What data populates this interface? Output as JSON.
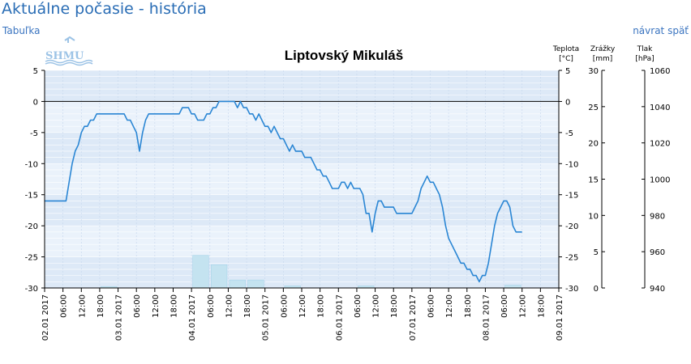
{
  "page": {
    "title": "Aktuálne počasie - história",
    "table_link": "Tabuľka",
    "back_link": "návrat späť",
    "logo_text": "SHMU"
  },
  "chart_data": {
    "type": "line",
    "title": "Liptovský Mikuláš",
    "axes": {
      "temperature": {
        "label_line1": "Teplota",
        "label_line2": "[°C]",
        "range": [
          -30,
          5
        ],
        "ticks": [
          5,
          0,
          -5,
          -10,
          -15,
          -20,
          -25,
          -30
        ]
      },
      "precipitation": {
        "label_line1": "Zrážky",
        "label_line2": "[mm]",
        "range": [
          0,
          30
        ],
        "ticks": [
          30,
          25,
          20,
          15,
          10,
          5,
          0
        ]
      },
      "pressure": {
        "label_line1": "Tlak",
        "label_line2": "[hPa]",
        "range": [
          940,
          1060
        ],
        "ticks": [
          1060,
          1040,
          1020,
          1000,
          980,
          960,
          940
        ]
      }
    },
    "x_range_hours": [
      0,
      168
    ],
    "x_ticks": [
      {
        "h": 0,
        "label": "02.01 2017"
      },
      {
        "h": 6,
        "label": "06:00"
      },
      {
        "h": 12,
        "label": "12:00"
      },
      {
        "h": 18,
        "label": "18:00"
      },
      {
        "h": 24,
        "label": "03.01 2017"
      },
      {
        "h": 30,
        "label": "06:00"
      },
      {
        "h": 36,
        "label": "12:00"
      },
      {
        "h": 42,
        "label": "18:00"
      },
      {
        "h": 48,
        "label": "04.01 2017"
      },
      {
        "h": 54,
        "label": "06:00"
      },
      {
        "h": 60,
        "label": "12:00"
      },
      {
        "h": 66,
        "label": "18:00"
      },
      {
        "h": 72,
        "label": "05.01 2017"
      },
      {
        "h": 78,
        "label": "06:00"
      },
      {
        "h": 84,
        "label": "12:00"
      },
      {
        "h": 90,
        "label": "18:00"
      },
      {
        "h": 96,
        "label": "06.01 2017"
      },
      {
        "h": 102,
        "label": "06:00"
      },
      {
        "h": 108,
        "label": "12:00"
      },
      {
        "h": 114,
        "label": "18:00"
      },
      {
        "h": 120,
        "label": "07.01 2017"
      },
      {
        "h": 126,
        "label": "06:00"
      },
      {
        "h": 132,
        "label": "12:00"
      },
      {
        "h": 138,
        "label": "18:00"
      },
      {
        "h": 144,
        "label": "08.01 2017"
      },
      {
        "h": 150,
        "label": "06:00"
      },
      {
        "h": 156,
        "label": "12:00"
      },
      {
        "h": 162,
        "label": "18:00"
      },
      {
        "h": 168,
        "label": "09.01 2017"
      }
    ],
    "temperature_series": {
      "color": "#2a86d4",
      "points": [
        [
          0,
          -16
        ],
        [
          2,
          -16
        ],
        [
          4,
          -16
        ],
        [
          5,
          -16
        ],
        [
          6,
          -16
        ],
        [
          7,
          -16
        ],
        [
          8,
          -13
        ],
        [
          9,
          -10
        ],
        [
          10,
          -8
        ],
        [
          11,
          -7
        ],
        [
          12,
          -5
        ],
        [
          13,
          -4
        ],
        [
          14,
          -4
        ],
        [
          15,
          -3
        ],
        [
          16,
          -3
        ],
        [
          17,
          -2
        ],
        [
          18,
          -2
        ],
        [
          19,
          -2
        ],
        [
          20,
          -2
        ],
        [
          21,
          -2
        ],
        [
          22,
          -2
        ],
        [
          23,
          -2
        ],
        [
          24,
          -2
        ],
        [
          25,
          -2
        ],
        [
          26,
          -2
        ],
        [
          27,
          -3
        ],
        [
          28,
          -3
        ],
        [
          29,
          -4
        ],
        [
          30,
          -5
        ],
        [
          31,
          -8
        ],
        [
          32,
          -5
        ],
        [
          33,
          -3
        ],
        [
          34,
          -2
        ],
        [
          35,
          -2
        ],
        [
          36,
          -2
        ],
        [
          37,
          -2
        ],
        [
          38,
          -2
        ],
        [
          39,
          -2
        ],
        [
          40,
          -2
        ],
        [
          41,
          -2
        ],
        [
          42,
          -2
        ],
        [
          43,
          -2
        ],
        [
          44,
          -2
        ],
        [
          45,
          -1
        ],
        [
          46,
          -1
        ],
        [
          47,
          -1
        ],
        [
          48,
          -2
        ],
        [
          49,
          -2
        ],
        [
          50,
          -3
        ],
        [
          51,
          -3
        ],
        [
          52,
          -3
        ],
        [
          53,
          -2
        ],
        [
          54,
          -2
        ],
        [
          55,
          -1
        ],
        [
          56,
          -1
        ],
        [
          57,
          0
        ],
        [
          58,
          0
        ],
        [
          59,
          0
        ],
        [
          60,
          0
        ],
        [
          61,
          0
        ],
        [
          62,
          0
        ],
        [
          63,
          -1
        ],
        [
          64,
          0
        ],
        [
          65,
          -1
        ],
        [
          66,
          -1
        ],
        [
          67,
          -2
        ],
        [
          68,
          -2
        ],
        [
          69,
          -3
        ],
        [
          70,
          -2
        ],
        [
          71,
          -3
        ],
        [
          72,
          -4
        ],
        [
          73,
          -4
        ],
        [
          74,
          -5
        ],
        [
          75,
          -4
        ],
        [
          76,
          -5
        ],
        [
          77,
          -6
        ],
        [
          78,
          -6
        ],
        [
          79,
          -7
        ],
        [
          80,
          -8
        ],
        [
          81,
          -7
        ],
        [
          82,
          -8
        ],
        [
          83,
          -8
        ],
        [
          84,
          -8
        ],
        [
          85,
          -9
        ],
        [
          86,
          -9
        ],
        [
          87,
          -9
        ],
        [
          88,
          -10
        ],
        [
          89,
          -11
        ],
        [
          90,
          -11
        ],
        [
          91,
          -12
        ],
        [
          92,
          -12
        ],
        [
          93,
          -13
        ],
        [
          94,
          -14
        ],
        [
          95,
          -14
        ],
        [
          96,
          -14
        ],
        [
          97,
          -13
        ],
        [
          98,
          -13
        ],
        [
          99,
          -14
        ],
        [
          100,
          -13
        ],
        [
          101,
          -14
        ],
        [
          102,
          -14
        ],
        [
          103,
          -14
        ],
        [
          104,
          -15
        ],
        [
          105,
          -18
        ],
        [
          106,
          -18
        ],
        [
          107,
          -21
        ],
        [
          108,
          -18
        ],
        [
          109,
          -16
        ],
        [
          110,
          -16
        ],
        [
          111,
          -17
        ],
        [
          112,
          -17
        ],
        [
          113,
          -17
        ],
        [
          114,
          -17
        ],
        [
          115,
          -18
        ],
        [
          116,
          -18
        ],
        [
          117,
          -18
        ],
        [
          118,
          -18
        ],
        [
          119,
          -18
        ],
        [
          120,
          -18
        ],
        [
          121,
          -17
        ],
        [
          122,
          -16
        ],
        [
          123,
          -14
        ],
        [
          124,
          -13
        ],
        [
          125,
          -12
        ],
        [
          126,
          -13
        ],
        [
          127,
          -13
        ],
        [
          128,
          -14
        ],
        [
          129,
          -15
        ],
        [
          130,
          -17
        ],
        [
          131,
          -20
        ],
        [
          132,
          -22
        ],
        [
          133,
          -23
        ],
        [
          134,
          -24
        ],
        [
          135,
          -25
        ],
        [
          136,
          -26
        ],
        [
          137,
          -26
        ],
        [
          138,
          -27
        ],
        [
          139,
          -27
        ],
        [
          140,
          -28
        ],
        [
          141,
          -28
        ],
        [
          142,
          -29
        ],
        [
          143,
          -28
        ],
        [
          144,
          -28
        ],
        [
          145,
          -26
        ],
        [
          146,
          -23
        ],
        [
          147,
          -20
        ],
        [
          148,
          -18
        ],
        [
          149,
          -17
        ],
        [
          150,
          -16
        ],
        [
          151,
          -16
        ],
        [
          152,
          -17
        ],
        [
          153,
          -20
        ],
        [
          154,
          -21
        ],
        [
          155,
          -21
        ],
        [
          156,
          -21
        ]
      ]
    },
    "precipitation_series": {
      "color": "#c4e3f0",
      "bars": [
        {
          "start": 48,
          "end": 54,
          "value": 4.5
        },
        {
          "start": 54,
          "end": 60,
          "value": 3.2
        },
        {
          "start": 60,
          "end": 66,
          "value": 1.1
        },
        {
          "start": 66,
          "end": 72,
          "value": 1.1
        },
        {
          "start": 18,
          "end": 24,
          "value": 0.2
        },
        {
          "start": 78,
          "end": 84,
          "value": 0.3
        },
        {
          "start": 102,
          "end": 108,
          "value": 0.3
        },
        {
          "start": 150,
          "end": 156,
          "value": 0.4
        }
      ]
    }
  }
}
